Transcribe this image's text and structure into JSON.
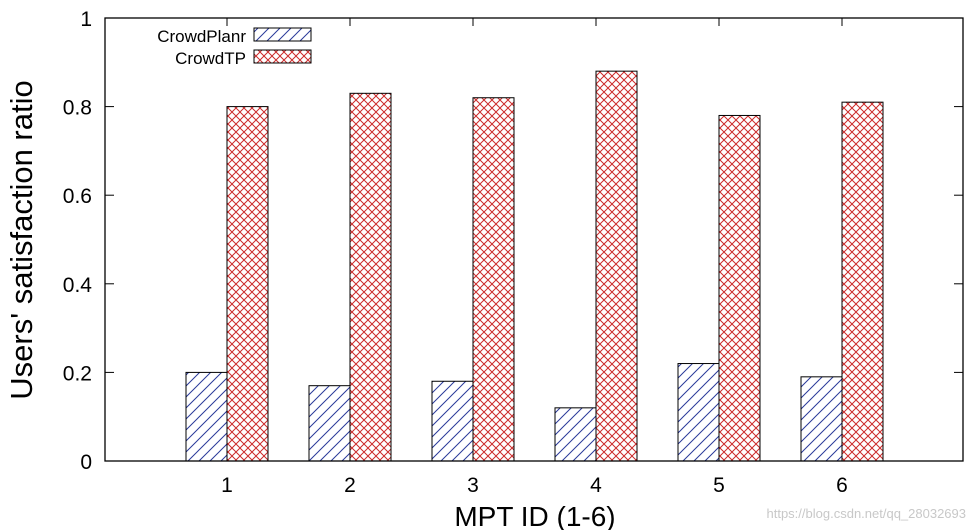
{
  "chart_data": {
    "type": "bar",
    "xlabel": "MPT ID (1-6)",
    "ylabel": "Users' satisfaction ratio",
    "categories": [
      "1",
      "2",
      "3",
      "4",
      "5",
      "6"
    ],
    "series": [
      {
        "name": "CrowdPlanr",
        "values": [
          0.2,
          0.17,
          0.18,
          0.12,
          0.22,
          0.19
        ],
        "color": "#1a1a8c",
        "pattern": "diagonal-hatch"
      },
      {
        "name": "CrowdTP",
        "values": [
          0.8,
          0.83,
          0.82,
          0.88,
          0.78,
          0.81
        ],
        "color": "#cc2222",
        "pattern": "crosshatch"
      }
    ],
    "ylim": [
      0,
      1
    ],
    "yticks": [
      "0",
      "0.2",
      "0.4",
      "0.6",
      "0.8",
      "1"
    ],
    "grid": false,
    "legend_position": "top-left"
  },
  "watermark": "https://blog.csdn.net/qq_28032693"
}
